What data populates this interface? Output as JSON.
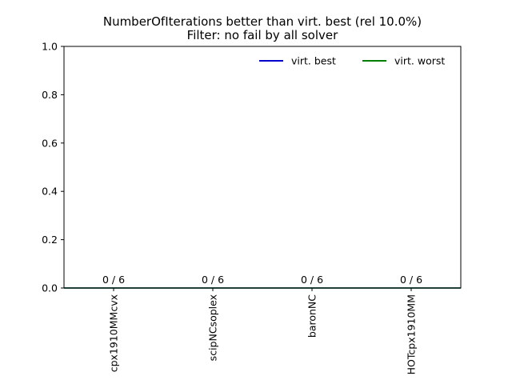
{
  "chart_data": {
    "type": "bar",
    "title_lines": [
      "NumberOfIterations better than virt. best (rel 10.0%)",
      "Filter: no fail by all solver"
    ],
    "categories": [
      "cpx1910MMcvx",
      "scipNCsoplex",
      "baronNC",
      "HOTcpx1910MM"
    ],
    "values": [
      0,
      0,
      0,
      0
    ],
    "bar_labels": [
      "0 / 6",
      "0 / 6",
      "0 / 6",
      "0 / 6"
    ],
    "ylim": [
      0,
      1.0
    ],
    "yticks": [
      "0.0",
      "0.2",
      "0.4",
      "0.6",
      "0.8",
      "1.0"
    ],
    "reference_lines": [
      {
        "name": "virt. best",
        "value": 0,
        "color": "#0000cc"
      },
      {
        "name": "virt. worst",
        "value": 0,
        "color": "#007f00"
      }
    ],
    "legend": {
      "placement": "top-right",
      "entries": [
        {
          "label": "virt. best",
          "color": "#0000cc"
        },
        {
          "label": "virt. worst",
          "color": "#007f00"
        }
      ]
    },
    "xlabel": "",
    "ylabel": "",
    "grid": false
  }
}
